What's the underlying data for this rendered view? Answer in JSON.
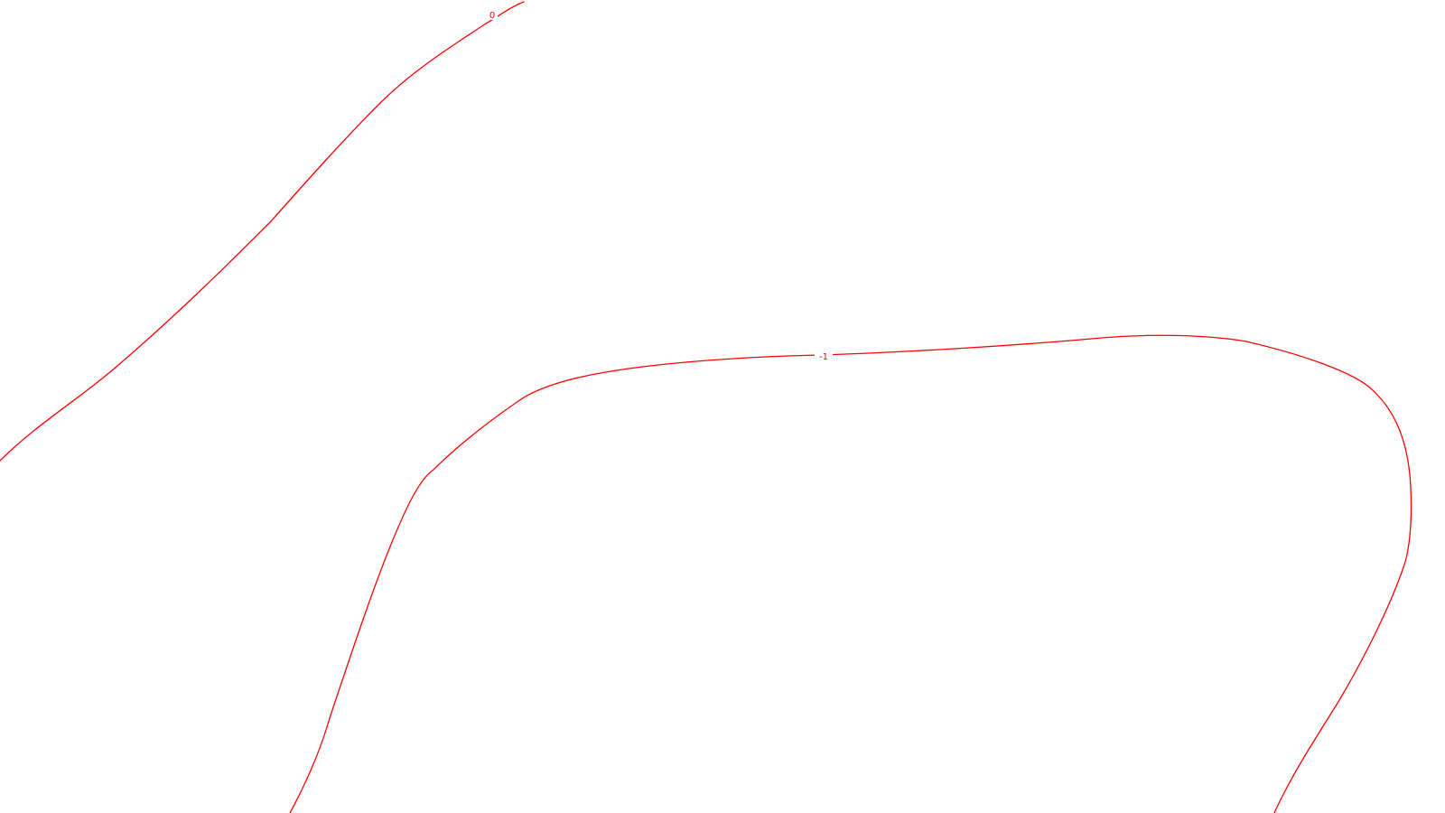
{
  "contour_map": {
    "line_color": "#ff0000",
    "background_color": "#ffffff",
    "contours": [
      {
        "label": "0"
      },
      {
        "label": "-1"
      }
    ]
  }
}
